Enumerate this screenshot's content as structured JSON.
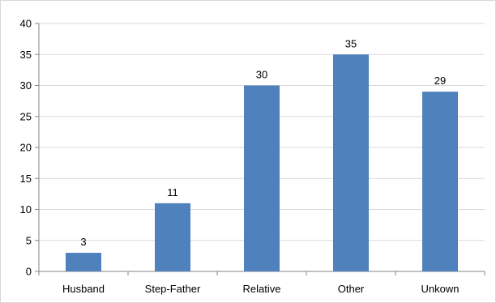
{
  "chart_data": {
    "type": "bar",
    "categories": [
      "Husband",
      "Step-Father",
      "Relative",
      "Other",
      "Unkown"
    ],
    "values": [
      3,
      11,
      30,
      35,
      29
    ],
    "title": "",
    "xlabel": "",
    "ylabel": "",
    "ylim": [
      0,
      40
    ],
    "yticks": [
      0,
      5,
      10,
      15,
      20,
      25,
      30,
      35,
      40
    ],
    "grid": true,
    "legend": "none",
    "bar_color": "#4f81bd",
    "grid_color": "#d9d9d9",
    "axis_color": "#868686"
  }
}
